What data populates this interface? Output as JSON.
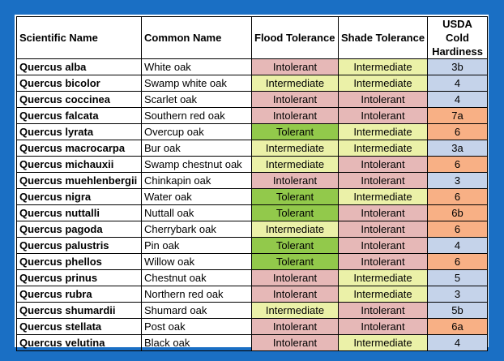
{
  "colors": {
    "frame": "#1a6fc4",
    "intolerant": "#e6b8b7",
    "intermediate": "#ebf1a8",
    "tolerant": "#92c94b",
    "zone_cool": "#c5d3ea",
    "zone_warm": "#f8b085"
  },
  "headers": {
    "scientific": "Scientific Name",
    "common": "Common Name",
    "flood": "Flood Tolerance",
    "shade": "Shade Tolerance",
    "usda": "USDA Cold Hardiness"
  },
  "rows": [
    {
      "sci": "Quercus alba",
      "common": "White oak",
      "flood": "Intolerant",
      "shade": "Intermediate",
      "zone": "3b"
    },
    {
      "sci": "Quercus bicolor",
      "common": "Swamp white oak",
      "flood": "Intermediate",
      "shade": "Intermediate",
      "zone": "4"
    },
    {
      "sci": "Quercus coccinea",
      "common": "Scarlet oak",
      "flood": "Intolerant",
      "shade": "Intolerant",
      "zone": "4"
    },
    {
      "sci": "Quercus falcata",
      "common": "Southern red oak",
      "flood": "Intolerant",
      "shade": "Intolerant",
      "zone": "7a"
    },
    {
      "sci": "Quercus lyrata",
      "common": "Overcup oak",
      "flood": "Tolerant",
      "shade": "Intermediate",
      "zone": "6"
    },
    {
      "sci": "Quercus macrocarpa",
      "common": "Bur oak",
      "flood": "Intermediate",
      "shade": "Intermediate",
      "zone": "3a"
    },
    {
      "sci": "Quercus michauxii",
      "common": "Swamp chestnut oak",
      "flood": "Intermediate",
      "shade": "Intolerant",
      "zone": "6"
    },
    {
      "sci": "Quercus muehlenbergii",
      "common": "Chinkapin oak",
      "flood": "Intolerant",
      "shade": "Intolerant",
      "zone": "3"
    },
    {
      "sci": "Quercus nigra",
      "common": "Water oak",
      "flood": "Tolerant",
      "shade": "Intermediate",
      "zone": "6"
    },
    {
      "sci": "Quercus nuttalli",
      "common": "Nuttall oak",
      "flood": "Tolerant",
      "shade": "Intolerant",
      "zone": "6b"
    },
    {
      "sci": "Quercus pagoda",
      "common": "Cherrybark oak",
      "flood": "Intermediate",
      "shade": "Intolerant",
      "zone": "6"
    },
    {
      "sci": "Quercus palustris",
      "common": "Pin oak",
      "flood": "Tolerant",
      "shade": "Intolerant",
      "zone": "4"
    },
    {
      "sci": "Quercus phellos",
      "common": "Willow oak",
      "flood": "Tolerant",
      "shade": "Intolerant",
      "zone": "6"
    },
    {
      "sci": "Quercus prinus",
      "common": "Chestnut oak",
      "flood": "Intolerant",
      "shade": "Intermediate",
      "zone": "5"
    },
    {
      "sci": "Quercus rubra",
      "common": "Northern red oak",
      "flood": "Intolerant",
      "shade": "Intermediate",
      "zone": "3"
    },
    {
      "sci": "Quercus shumardii",
      "common": "Shumard oak",
      "flood": "Intermediate",
      "shade": "Intolerant",
      "zone": "5b"
    },
    {
      "sci": "Quercus stellata",
      "common": "Post oak",
      "flood": "Intolerant",
      "shade": "Intolerant",
      "zone": "6a"
    },
    {
      "sci": "Quercus velutina",
      "common": "Black oak",
      "flood": "Intolerant",
      "shade": "Intermediate",
      "zone": "4"
    }
  ]
}
